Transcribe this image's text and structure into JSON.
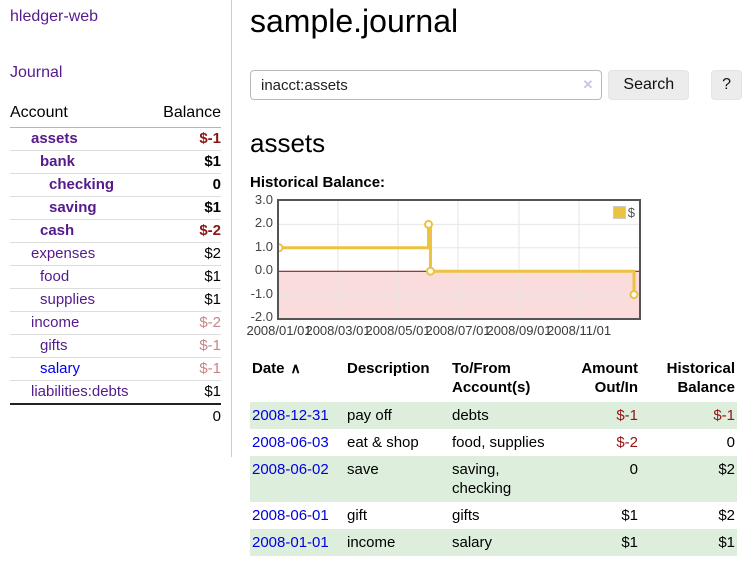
{
  "app": {
    "brand": "hledger-web",
    "nav_journal": "Journal"
  },
  "sidebar": {
    "accounts_header": {
      "account": "Account",
      "balance": "Balance"
    },
    "accounts": [
      {
        "label": "assets",
        "depth": 0,
        "bold": true,
        "balance": "$-1",
        "neg": "strong",
        "link": "visited"
      },
      {
        "label": "bank",
        "depth": 1,
        "bold": true,
        "balance": "$1",
        "neg": null,
        "link": "visited"
      },
      {
        "label": "checking",
        "depth": 2,
        "bold": true,
        "balance": "0",
        "neg": null,
        "link": "visited"
      },
      {
        "label": "saving",
        "depth": 2,
        "bold": true,
        "balance": "$1",
        "neg": null,
        "link": "visited"
      },
      {
        "label": "cash",
        "depth": 1,
        "bold": true,
        "balance": "$-2",
        "neg": "strong",
        "link": "visited"
      },
      {
        "label": "expenses",
        "depth": 0,
        "bold": false,
        "balance": "$2",
        "neg": null,
        "link": "visited"
      },
      {
        "label": "food",
        "depth": 1,
        "bold": false,
        "balance": "$1",
        "neg": null,
        "link": "visited"
      },
      {
        "label": "supplies",
        "depth": 1,
        "bold": false,
        "balance": "$1",
        "neg": null,
        "link": "visited"
      },
      {
        "label": "income",
        "depth": 0,
        "bold": false,
        "balance": "$-2",
        "neg": "soft",
        "link": "visited"
      },
      {
        "label": "gifts",
        "depth": 1,
        "bold": false,
        "balance": "$-1",
        "neg": "soft",
        "link": "visited"
      },
      {
        "label": "salary",
        "depth": 1,
        "bold": false,
        "balance": "$-1",
        "neg": "soft",
        "link": "unvisited"
      },
      {
        "label": "liabilities:debts",
        "depth": 0,
        "bold": false,
        "balance": "$1",
        "neg": null,
        "link": "visited"
      }
    ],
    "total": "0"
  },
  "header": {
    "title": "sample.journal"
  },
  "search": {
    "value": "inacct:assets",
    "clear_icon": "✕",
    "button": "Search",
    "help_button": "?"
  },
  "account_page": {
    "title": "assets",
    "chart_label": "Historical Balance:"
  },
  "chart_data": {
    "type": "line",
    "title": "Historical Balance",
    "legend": "$",
    "legend_position": "top-right",
    "step": true,
    "series": [
      {
        "name": "$",
        "points": [
          [
            "2008-01-01",
            1
          ],
          [
            "2008-06-01",
            2
          ],
          [
            "2008-06-03",
            0
          ],
          [
            "2008-12-31",
            -1
          ]
        ]
      }
    ],
    "x_ticks": [
      "2008/01/01",
      "2008/03/01",
      "2008/05/01",
      "2008/07/01",
      "2008/09/01",
      "2008/11/01"
    ],
    "y_ticks": [
      3.0,
      2.0,
      1.0,
      0.0,
      -1.0,
      -2.0
    ],
    "ylim": [
      -2,
      3
    ],
    "xrange": [
      "2008-01-01",
      "2009-01-01"
    ],
    "grid": true,
    "colors": {
      "line": "#edc240",
      "marker_fill": "#ffffff",
      "negative_fill": "#fadcdc",
      "zero_line": "#8b0000",
      "grid": "#e6e6e6",
      "border": "#545454"
    }
  },
  "register": {
    "sort_icon": "∧",
    "columns": [
      {
        "label": "Date",
        "align": "left"
      },
      {
        "label": "Description",
        "align": "left"
      },
      {
        "label": "To/From\nAccount(s)",
        "align": "left"
      },
      {
        "label": "Amount\nOut/In",
        "align": "right"
      },
      {
        "label": "Historical\nBalance",
        "align": "right"
      }
    ],
    "rows": [
      {
        "date": "2008-12-31",
        "description": "pay off",
        "accounts": "debts",
        "amount": "$-1",
        "amount_neg": true,
        "balance": "$-1",
        "balance_neg": true
      },
      {
        "date": "2008-06-03",
        "description": "eat & shop",
        "accounts": "food, supplies",
        "amount": "$-2",
        "amount_neg": true,
        "balance": "0",
        "balance_neg": false
      },
      {
        "date": "2008-06-02",
        "description": "save",
        "accounts": "saving,\nchecking",
        "amount": "0",
        "amount_neg": false,
        "balance": "$2",
        "balance_neg": false
      },
      {
        "date": "2008-06-01",
        "description": "gift",
        "accounts": "gifts",
        "amount": "$1",
        "amount_neg": false,
        "balance": "$2",
        "balance_neg": false
      },
      {
        "date": "2008-01-01",
        "description": "income",
        "accounts": "salary",
        "amount": "$1",
        "amount_neg": false,
        "balance": "$1",
        "balance_neg": false
      }
    ]
  }
}
